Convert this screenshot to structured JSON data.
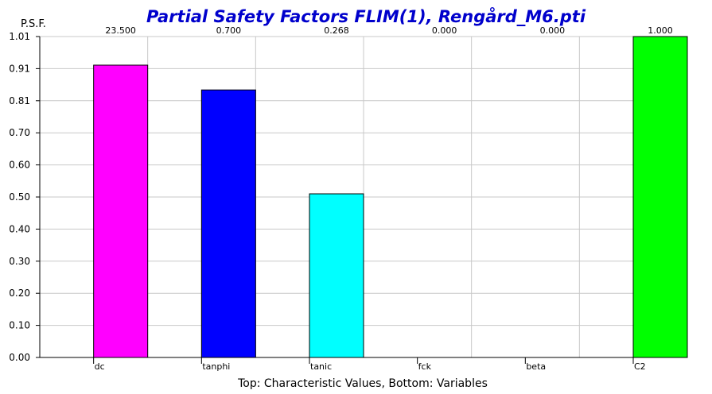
{
  "chart_data": {
    "type": "bar",
    "title": "Partial Safety Factors FLIM(1), Rengård_M6.pti",
    "ylabel": "P.S.F.",
    "xlabel": "Top: Characteristic Values, Bottom: Variables",
    "categories": [
      "dc",
      "tanphi",
      "tanic",
      "fck",
      "beta",
      "C2"
    ],
    "values": [
      0.92,
      0.842,
      0.515,
      0.0,
      0.0,
      1.01
    ],
    "top_labels": [
      "23.500",
      "0.700",
      "0.268",
      "0.000",
      "0.000",
      "1.000"
    ],
    "colors": [
      "#ff00ff",
      "#0000ff",
      "#00ffff",
      "#ffffff",
      "#ffffff",
      "#00ff00"
    ],
    "yticks": [
      "0.00",
      "0.10",
      "0.20",
      "0.30",
      "0.40",
      "0.50",
      "0.60",
      "0.70",
      "0.81",
      "0.91",
      "1.01"
    ],
    "ylim": [
      0,
      1.01
    ],
    "grid": true,
    "legend": "none"
  }
}
